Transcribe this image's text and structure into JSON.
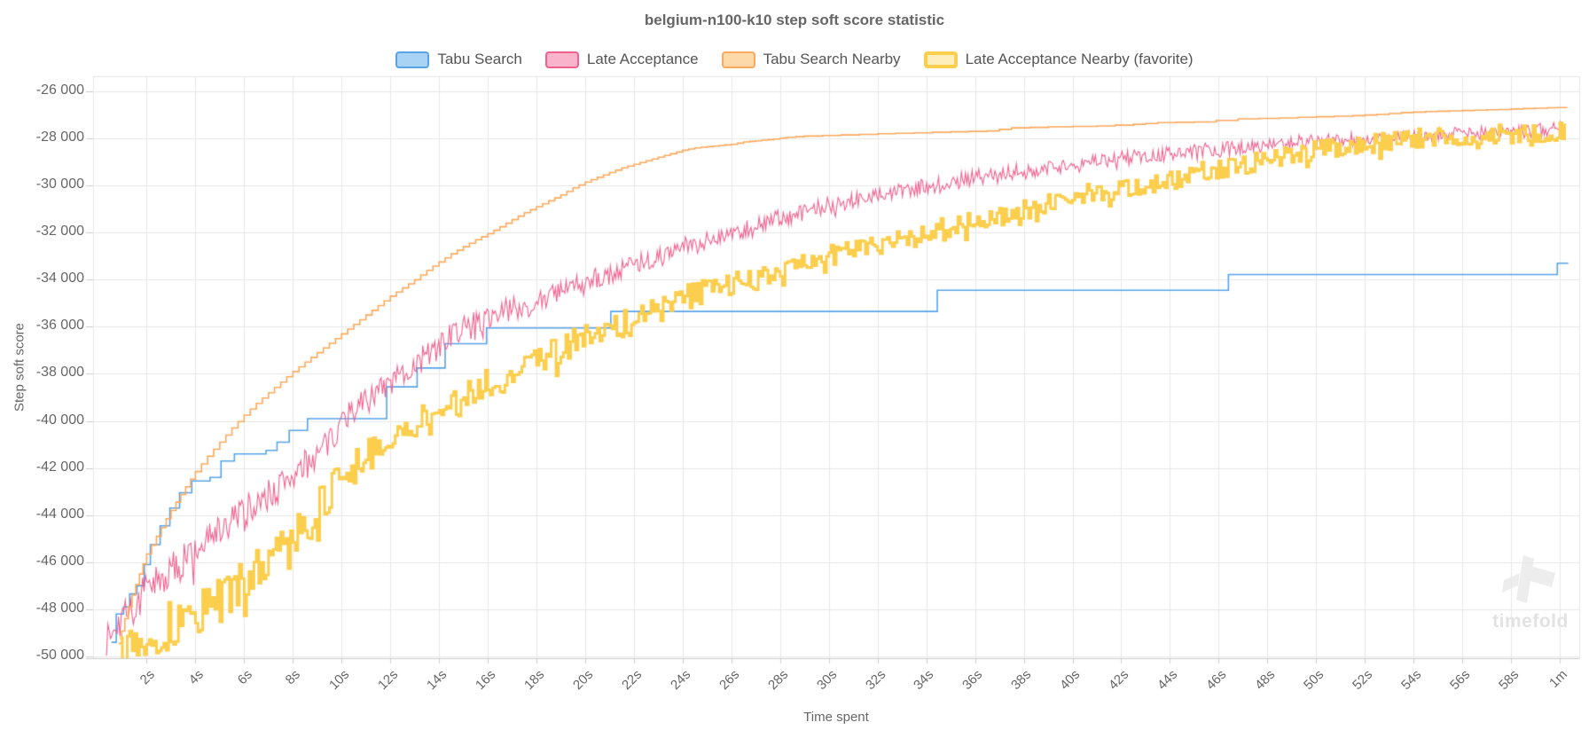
{
  "chart": {
    "title": "belgium-n100-k10 step soft score statistic",
    "x_axis_title": "Time spent",
    "y_axis_title": "Step soft score"
  },
  "watermark": {
    "text": "timefold"
  },
  "chart_data": {
    "type": "line",
    "title": "belgium-n100-k10 step soft score statistic",
    "xlabel": "Time spent",
    "ylabel": "Step soft score",
    "xlim": [
      -0.2,
      60.8
    ],
    "ylim": [
      -50075,
      -25360
    ],
    "grid": true,
    "legend_position": "top",
    "colors": {
      "grid": "#e7e7e7",
      "axis": "#c9c9c9",
      "tick": "#cccccc",
      "text": "#666666"
    },
    "y_ticks": [
      {
        "label": "-26 000",
        "value": -26000
      },
      {
        "label": "-28 000",
        "value": -28000
      },
      {
        "label": "-30 000",
        "value": -30000
      },
      {
        "label": "-32 000",
        "value": -32000
      },
      {
        "label": "-34 000",
        "value": -34000
      },
      {
        "label": "-36 000",
        "value": -36000
      },
      {
        "label": "-38 000",
        "value": -38000
      },
      {
        "label": "-40 000",
        "value": -40000
      },
      {
        "label": "-42 000",
        "value": -42000
      },
      {
        "label": "-44 000",
        "value": -44000
      },
      {
        "label": "-46 000",
        "value": -46000
      },
      {
        "label": "-48 000",
        "value": -48000
      },
      {
        "label": "-50 000",
        "value": -50000
      }
    ],
    "x_ticks": [
      {
        "label": "2s",
        "t": 2
      },
      {
        "label": "4s",
        "t": 4
      },
      {
        "label": "6s",
        "t": 6
      },
      {
        "label": "8s",
        "t": 8
      },
      {
        "label": "10s",
        "t": 10
      },
      {
        "label": "12s",
        "t": 12
      },
      {
        "label": "14s",
        "t": 14
      },
      {
        "label": "16s",
        "t": 16
      },
      {
        "label": "18s",
        "t": 18
      },
      {
        "label": "20s",
        "t": 20
      },
      {
        "label": "22s",
        "t": 22
      },
      {
        "label": "24s",
        "t": 24
      },
      {
        "label": "26s",
        "t": 26
      },
      {
        "label": "28s",
        "t": 28
      },
      {
        "label": "30s",
        "t": 30
      },
      {
        "label": "32s",
        "t": 32
      },
      {
        "label": "34s",
        "t": 34
      },
      {
        "label": "36s",
        "t": 36
      },
      {
        "label": "38s",
        "t": 38
      },
      {
        "label": "40s",
        "t": 40
      },
      {
        "label": "42s",
        "t": 42
      },
      {
        "label": "44s",
        "t": 44
      },
      {
        "label": "46s",
        "t": 46
      },
      {
        "label": "48s",
        "t": 48
      },
      {
        "label": "50s",
        "t": 50
      },
      {
        "label": "52s",
        "t": 52
      },
      {
        "label": "54s",
        "t": 54
      },
      {
        "label": "56s",
        "t": 56
      },
      {
        "label": "58s",
        "t": 58
      },
      {
        "label": "1m",
        "t": 60
      }
    ],
    "series": [
      {
        "name": "Tabu Search",
        "color": "#57a3e8",
        "fill": "#a9d3f5",
        "style": "step",
        "line_width": 1.6,
        "points": [
          [
            0.55,
            -49400
          ],
          [
            0.75,
            -48200
          ],
          [
            1.05,
            -47900
          ],
          [
            1.3,
            -47350
          ],
          [
            1.6,
            -47000
          ],
          [
            1.9,
            -46100
          ],
          [
            2.15,
            -45250
          ],
          [
            2.55,
            -44450
          ],
          [
            2.95,
            -43700
          ],
          [
            3.35,
            -43050
          ],
          [
            3.85,
            -42550
          ],
          [
            4.6,
            -42400
          ],
          [
            5.05,
            -41700
          ],
          [
            5.6,
            -41400
          ],
          [
            6.9,
            -41250
          ],
          [
            7.35,
            -40900
          ],
          [
            7.85,
            -40400
          ],
          [
            8.6,
            -39900
          ],
          [
            11.85,
            -38550
          ],
          [
            13.1,
            -37750
          ],
          [
            14.25,
            -36720
          ],
          [
            15.95,
            -36050
          ],
          [
            21.05,
            -35350
          ],
          [
            34.45,
            -34450
          ],
          [
            46.4,
            -33780
          ],
          [
            59.9,
            -33300
          ],
          [
            60.35,
            -33300
          ]
        ]
      },
      {
        "name": "Late Acceptance",
        "color": "#f2608e",
        "fill": "#f9b3cb",
        "style": "noisy",
        "line_width": 1.1,
        "noise": {
          "dt": 0.055,
          "amp_start": 950,
          "amp_end": 270,
          "amp_decay": 16,
          "tail_start": 1500,
          "tail_end": 300,
          "tail_decay": 9,
          "tail_p": 0.33,
          "seed": 7
        },
        "points": [
          [
            0.35,
            -48700
          ],
          [
            1,
            -48300
          ],
          [
            2,
            -47300
          ],
          [
            3,
            -46400
          ],
          [
            4,
            -45500
          ],
          [
            5,
            -44700
          ],
          [
            6,
            -43900
          ],
          [
            7,
            -43100
          ],
          [
            8,
            -42300
          ],
          [
            9,
            -41500
          ],
          [
            10,
            -40000
          ],
          [
            11,
            -39200
          ],
          [
            12,
            -38400
          ],
          [
            13,
            -37500
          ],
          [
            14,
            -36700
          ],
          [
            15,
            -36000
          ],
          [
            16,
            -35600
          ],
          [
            17,
            -35200
          ],
          [
            18,
            -34900
          ],
          [
            19,
            -34500
          ],
          [
            20,
            -34100
          ],
          [
            21,
            -33800
          ],
          [
            22,
            -33400
          ],
          [
            23,
            -33000
          ],
          [
            24,
            -32600
          ],
          [
            25,
            -32300
          ],
          [
            26,
            -32000
          ],
          [
            27,
            -31700
          ],
          [
            28,
            -31400
          ],
          [
            29,
            -31100
          ],
          [
            30,
            -30800
          ],
          [
            31,
            -30600
          ],
          [
            32,
            -30400
          ],
          [
            33,
            -30200
          ],
          [
            34,
            -30000
          ],
          [
            35,
            -29800
          ],
          [
            36,
            -29650
          ],
          [
            37,
            -29500
          ],
          [
            38,
            -29350
          ],
          [
            39,
            -29200
          ],
          [
            40,
            -29050
          ],
          [
            41,
            -28950
          ],
          [
            42,
            -28850
          ],
          [
            43,
            -28750
          ],
          [
            44,
            -28650
          ],
          [
            45,
            -28550
          ],
          [
            46,
            -28450
          ],
          [
            47,
            -28350
          ],
          [
            48,
            -28250
          ],
          [
            49,
            -28150
          ],
          [
            50,
            -28100
          ],
          [
            51,
            -28050
          ],
          [
            52,
            -28000
          ],
          [
            53,
            -27950
          ],
          [
            54,
            -27900
          ],
          [
            55,
            -27850
          ],
          [
            56,
            -27800
          ],
          [
            57,
            -27750
          ],
          [
            58,
            -27700
          ],
          [
            59,
            -27650
          ],
          [
            60.25,
            -27550
          ]
        ]
      },
      {
        "name": "Tabu Search Nearby",
        "color": "#fba95c",
        "fill": "#fdd8a9",
        "style": "fine-step",
        "line_width": 1.6,
        "points": [
          [
            0.85,
            -49450
          ],
          [
            1.1,
            -48400
          ],
          [
            1.4,
            -47400
          ],
          [
            1.7,
            -46500
          ],
          [
            2.0,
            -45650
          ],
          [
            2.4,
            -44900
          ],
          [
            2.8,
            -44150
          ],
          [
            3.2,
            -43450
          ],
          [
            3.6,
            -42800
          ],
          [
            4.0,
            -42150
          ],
          [
            4.5,
            -41500
          ],
          [
            5.0,
            -40900
          ],
          [
            5.5,
            -40300
          ],
          [
            6.0,
            -39750
          ],
          [
            6.5,
            -39250
          ],
          [
            7.0,
            -38800
          ],
          [
            7.5,
            -38350
          ],
          [
            8.0,
            -37900
          ],
          [
            8.5,
            -37500
          ],
          [
            9.0,
            -37100
          ],
          [
            9.5,
            -36700
          ],
          [
            10.0,
            -36300
          ],
          [
            10.5,
            -35900
          ],
          [
            11.0,
            -35500
          ],
          [
            11.5,
            -35100
          ],
          [
            12.0,
            -34700
          ],
          [
            12.5,
            -34350
          ],
          [
            13.0,
            -34000
          ],
          [
            13.5,
            -33600
          ],
          [
            14.0,
            -33250
          ],
          [
            14.5,
            -32900
          ],
          [
            15.0,
            -32600
          ],
          [
            15.5,
            -32300
          ],
          [
            16.0,
            -32050
          ],
          [
            16.5,
            -31750
          ],
          [
            17.0,
            -31450
          ],
          [
            17.5,
            -31150
          ],
          [
            18.0,
            -30900
          ],
          [
            18.5,
            -30650
          ],
          [
            19.0,
            -30400
          ],
          [
            19.5,
            -30100
          ],
          [
            20.0,
            -29850
          ],
          [
            20.5,
            -29650
          ],
          [
            21.0,
            -29450
          ],
          [
            21.5,
            -29250
          ],
          [
            22.0,
            -29100
          ],
          [
            22.5,
            -28950
          ],
          [
            23.0,
            -28800
          ],
          [
            23.5,
            -28650
          ],
          [
            24.0,
            -28500
          ],
          [
            24.5,
            -28400
          ],
          [
            25.0,
            -28350
          ],
          [
            25.5,
            -28300
          ],
          [
            26.0,
            -28250
          ],
          [
            26.5,
            -28150
          ],
          [
            27.0,
            -28100
          ],
          [
            27.5,
            -28050
          ],
          [
            28.0,
            -28000
          ],
          [
            28.3,
            -27950
          ],
          [
            29.0,
            -27900
          ],
          [
            30.5,
            -27850
          ],
          [
            32.0,
            -27800
          ],
          [
            33.5,
            -27760
          ],
          [
            35.0,
            -27720
          ],
          [
            36.5,
            -27680
          ],
          [
            37.5,
            -27550
          ],
          [
            39.0,
            -27510
          ],
          [
            41.0,
            -27470
          ],
          [
            42.5,
            -27400
          ],
          [
            43.5,
            -27330
          ],
          [
            45.0,
            -27300
          ],
          [
            46.8,
            -27170
          ],
          [
            48.5,
            -27130
          ],
          [
            50.0,
            -27080
          ],
          [
            51.5,
            -27030
          ],
          [
            52.5,
            -26980
          ],
          [
            53.5,
            -26900
          ],
          [
            54.5,
            -26860
          ],
          [
            55.5,
            -26830
          ],
          [
            56.5,
            -26800
          ],
          [
            57.5,
            -26770
          ],
          [
            58.5,
            -26730
          ],
          [
            59.5,
            -26700
          ],
          [
            60.3,
            -26680
          ]
        ]
      },
      {
        "name": "Late Acceptance Nearby (favorite)",
        "color": "#fbce4d",
        "fill": "#fdeebc",
        "style": "noisy-step",
        "line_width": 3,
        "favorite": true,
        "noise": {
          "dt": 0.1,
          "amp_start": 1100,
          "amp_end": 380,
          "amp_decay": 18,
          "tail_start": 1700,
          "tail_end": 430,
          "tail_decay": 10,
          "tail_p": 0.35,
          "seed": 13
        },
        "points": [
          [
            0.9,
            -49350
          ],
          [
            2,
            -49050
          ],
          [
            3,
            -48650
          ],
          [
            4,
            -48150
          ],
          [
            5,
            -47550
          ],
          [
            6,
            -46800
          ],
          [
            7,
            -45900
          ],
          [
            8,
            -44900
          ],
          [
            9,
            -43700
          ],
          [
            10,
            -42400
          ],
          [
            11,
            -41600
          ],
          [
            12,
            -40900
          ],
          [
            13,
            -40200
          ],
          [
            14,
            -39600
          ],
          [
            15,
            -39000
          ],
          [
            16,
            -38400
          ],
          [
            17,
            -37900
          ],
          [
            18,
            -37400
          ],
          [
            19,
            -36900
          ],
          [
            20,
            -36400
          ],
          [
            21,
            -36000
          ],
          [
            22,
            -35600
          ],
          [
            23,
            -35200
          ],
          [
            24,
            -34800
          ],
          [
            25,
            -34500
          ],
          [
            26,
            -34200
          ],
          [
            27,
            -33900
          ],
          [
            28,
            -33600
          ],
          [
            29,
            -33300
          ],
          [
            30,
            -33000
          ],
          [
            31,
            -32700
          ],
          [
            32,
            -32500
          ],
          [
            33,
            -32300
          ],
          [
            34,
            -32000
          ],
          [
            35,
            -31800
          ],
          [
            36,
            -31500
          ],
          [
            37,
            -31300
          ],
          [
            38,
            -31000
          ],
          [
            39,
            -30800
          ],
          [
            40,
            -30500
          ],
          [
            41,
            -30300
          ],
          [
            42,
            -30100
          ],
          [
            43,
            -29900
          ],
          [
            44,
            -29700
          ],
          [
            45,
            -29500
          ],
          [
            46,
            -29300
          ],
          [
            47,
            -29100
          ],
          [
            48,
            -28900
          ],
          [
            49,
            -28700
          ],
          [
            50,
            -28500
          ],
          [
            51,
            -28350
          ],
          [
            52,
            -28200
          ],
          [
            53,
            -28100
          ],
          [
            54,
            -28000
          ],
          [
            55,
            -27950
          ],
          [
            56,
            -27900
          ],
          [
            57,
            -27850
          ],
          [
            58,
            -27800
          ],
          [
            59,
            -27750
          ],
          [
            60.25,
            -27650
          ]
        ]
      }
    ]
  }
}
